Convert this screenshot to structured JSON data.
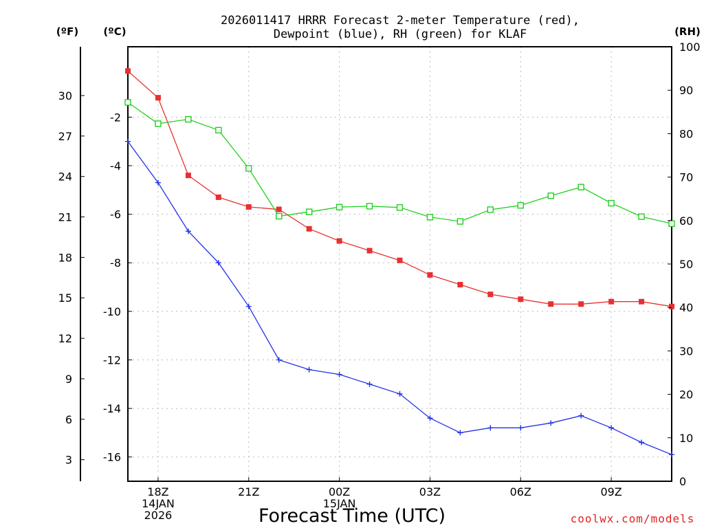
{
  "chart_data": {
    "type": "line",
    "title_lines": [
      "2026011417 HRRR Forecast 2-meter Temperature (red),",
      "Dewpoint (blue), RH (green) for KLAF"
    ],
    "xlabel": "Forecast Time (UTC)",
    "credit": "coolwx.com/models",
    "units": {
      "fahrenheit": "(ºF)",
      "celsius": "(ºC)",
      "rh": "(RH)"
    },
    "x_hours": [
      17,
      18,
      19,
      20,
      21,
      22,
      23,
      24,
      25,
      26,
      27,
      28,
      29,
      30,
      31,
      32,
      33,
      34,
      35
    ],
    "x_range": [
      17,
      35
    ],
    "x_ticks": [
      {
        "hour": 18,
        "lines": [
          "18Z",
          "14JAN",
          "2026"
        ]
      },
      {
        "hour": 21,
        "lines": [
          "21Z"
        ]
      },
      {
        "hour": 24,
        "lines": [
          "00Z",
          "15JAN"
        ]
      },
      {
        "hour": 27,
        "lines": [
          "03Z"
        ]
      },
      {
        "hour": 30,
        "lines": [
          "06Z"
        ]
      },
      {
        "hour": 33,
        "lines": [
          "09Z"
        ]
      }
    ],
    "celsius_range": [
      -17,
      0.9
    ],
    "celsius_ticks": [
      "-2",
      "-4",
      "-6",
      "-8",
      "-10",
      "-12",
      "-14",
      "-16"
    ],
    "fahrenheit_ticks": [
      "30",
      "27",
      "24",
      "21",
      "18",
      "15",
      "12",
      "9",
      "6",
      "3"
    ],
    "rh_range": [
      0,
      100
    ],
    "rh_ticks": [
      "100",
      "90",
      "80",
      "70",
      "60",
      "50",
      "40",
      "30",
      "20",
      "10",
      "0"
    ],
    "series": [
      {
        "name": "Temperature",
        "unit": "°C",
        "color": "#e83030",
        "marker": "filled-square",
        "values": [
          -0.1,
          -1.2,
          -4.4,
          -5.3,
          -5.7,
          -5.8,
          -6.6,
          -7.1,
          -7.5,
          -7.9,
          -8.5,
          -8.9,
          -9.3,
          -9.5,
          -9.7,
          -9.7,
          -9.6,
          -9.6,
          -9.8
        ]
      },
      {
        "name": "Dewpoint",
        "unit": "°C",
        "color": "#2030e8",
        "marker": "plus",
        "values": [
          -3.0,
          -4.7,
          -6.7,
          -8.0,
          -9.8,
          -12.0,
          -12.4,
          -12.6,
          -13.0,
          -13.4,
          -14.4,
          -15.0,
          -14.8,
          -14.8,
          -14.6,
          -14.3,
          -14.8,
          -15.4,
          -15.9
        ]
      },
      {
        "name": "RH",
        "unit": "%",
        "color": "#20d020",
        "marker": "open-square",
        "values": [
          87.2,
          82.3,
          83.3,
          80.8,
          72.0,
          61.0,
          62.0,
          63.1,
          63.3,
          63.0,
          60.8,
          59.8,
          62.5,
          63.5,
          65.7,
          67.7,
          64.0,
          60.9,
          59.3
        ]
      }
    ]
  }
}
